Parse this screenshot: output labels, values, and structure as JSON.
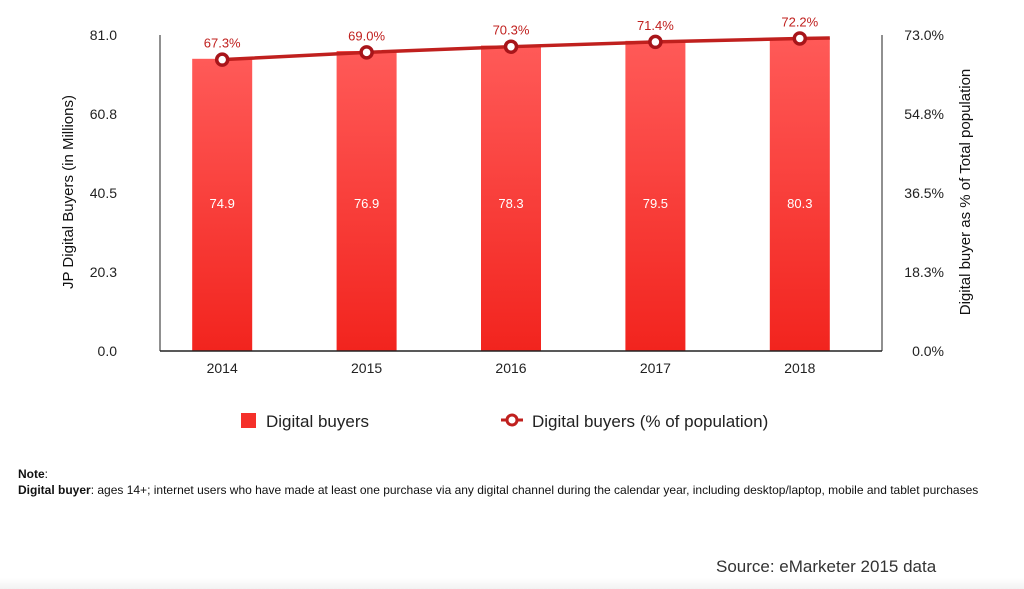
{
  "chart_data": {
    "type": "bar+line",
    "categories": [
      "2014",
      "2015",
      "2016",
      "2017",
      "2018"
    ],
    "series": [
      {
        "name": "Digital buyers",
        "type": "bar",
        "axis": "left",
        "values": [
          74.9,
          76.9,
          78.3,
          79.5,
          80.3
        ],
        "labels": [
          "74.9",
          "76.9",
          "78.3",
          "79.5",
          "80.3"
        ],
        "color": "#f5302a"
      },
      {
        "name": "Digital buyers (% of population)",
        "type": "line",
        "axis": "right",
        "values": [
          67.3,
          69.0,
          70.3,
          71.4,
          72.2
        ],
        "labels": [
          "67.3%",
          "69.0%",
          "70.3%",
          "71.4%",
          "72.2%"
        ],
        "color": "#c0201e"
      }
    ],
    "ylabel": "JP Digital Buyers (in Millions)",
    "y2label": "Digital buyer as % of Total population",
    "ylim": [
      0,
      81
    ],
    "y2lim": [
      0,
      73
    ],
    "yticks": [
      "0.0",
      "20.3",
      "40.5",
      "60.8",
      "81.0"
    ],
    "y2ticks": [
      "0.0%",
      "18.3%",
      "36.5%",
      "54.8%",
      "73.0%"
    ],
    "legend_position": "bottom",
    "grid": false
  },
  "note": {
    "heading": "Note",
    "term": "Digital buyer",
    "definition": ": ages 14+; internet users who have made at least one purchase via any digital channel during the calendar year, including desktop/laptop, mobile and tablet purchases"
  },
  "source": "Source: eMarketer 2015 data"
}
